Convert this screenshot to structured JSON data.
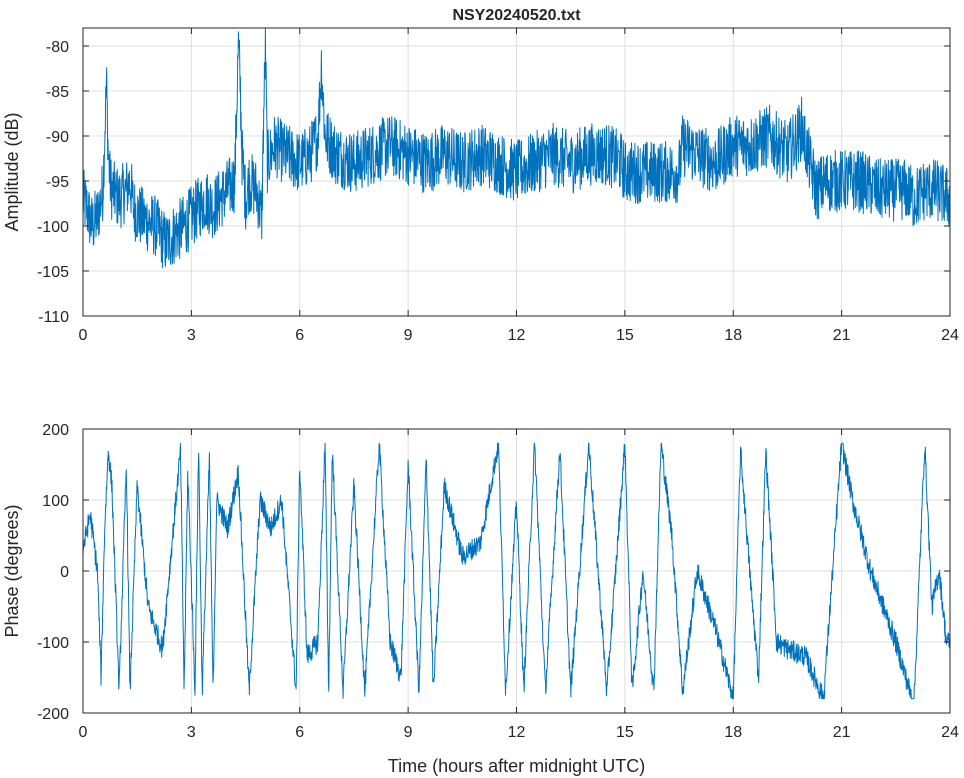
{
  "title": "NSY20240520.txt",
  "xlabel": "Time (hours after midnight UTC)",
  "colors": {
    "series": "#0072BD"
  },
  "chart_data": [
    {
      "type": "line",
      "name": "amplitude",
      "title": "NSY20240520.txt",
      "xlabel": "",
      "ylabel": "Amplitude (dB)",
      "xlim": [
        0,
        24
      ],
      "ylim": [
        -110,
        -78
      ],
      "xticks": [
        0,
        3,
        6,
        9,
        12,
        15,
        18,
        21,
        24
      ],
      "yticks": [
        -110,
        -105,
        -100,
        -95,
        -90,
        -85,
        -80
      ],
      "grid": true,
      "series": [
        {
          "x": [
            0,
            0.1,
            0.25,
            0.4,
            0.5,
            0.55,
            0.6,
            0.65,
            0.7,
            0.75,
            0.8,
            1.0,
            1.2,
            1.3,
            1.4,
            1.6,
            2.0,
            2.3,
            2.5,
            2.8,
            3.0,
            3.2,
            3.4,
            3.6,
            3.8,
            4.0,
            4.2,
            4.3,
            4.35,
            4.4,
            4.5,
            4.6,
            4.8,
            4.95,
            5.0,
            5.05,
            5.1,
            5.3,
            5.6,
            6.0,
            6.3,
            6.5,
            6.6,
            6.7,
            7.0,
            7.5,
            8.0,
            8.5,
            9.0,
            9.5,
            10.0,
            10.5,
            11.0,
            11.5,
            12.0,
            12.5,
            13.0,
            13.5,
            14.0,
            14.5,
            14.9,
            15.0,
            15.5,
            16.0,
            16.5,
            16.6,
            17.0,
            17.5,
            18.0,
            18.5,
            19.0,
            19.5,
            19.8,
            19.9,
            20.0,
            20.3,
            20.6,
            21.0,
            21.5,
            22.0,
            22.5,
            22.8,
            23.0,
            23.3,
            23.6,
            24.0
          ],
          "y": [
            -97,
            -98,
            -100,
            -99,
            -97,
            -96,
            -90,
            -84,
            -92,
            -95,
            -96,
            -97,
            -96,
            -95,
            -98,
            -99,
            -100,
            -102,
            -101,
            -100,
            -99,
            -98,
            -97,
            -98,
            -97,
            -96,
            -95,
            -80,
            -84,
            -92,
            -97,
            -95,
            -96,
            -99,
            -88,
            -80,
            -93,
            -91,
            -92,
            -93,
            -92,
            -90,
            -82,
            -90,
            -92,
            -93,
            -92,
            -91,
            -92,
            -93,
            -92,
            -93,
            -92,
            -93,
            -94,
            -93,
            -92,
            -93,
            -92,
            -92,
            -93,
            -94,
            -94,
            -94,
            -94,
            -91,
            -92,
            -93,
            -91,
            -91,
            -90,
            -92,
            -90,
            -89,
            -91,
            -96,
            -95,
            -95,
            -95,
            -96,
            -96,
            -96,
            -97,
            -96,
            -96,
            -97
          ]
        }
      ]
    },
    {
      "type": "line",
      "name": "phase",
      "title": "",
      "xlabel": "Time (hours after midnight UTC)",
      "ylabel": "Phase (degrees)",
      "xlim": [
        0,
        24
      ],
      "ylim": [
        -200,
        200
      ],
      "xticks": [
        0,
        3,
        6,
        9,
        12,
        15,
        18,
        21,
        24
      ],
      "yticks": [
        -200,
        -100,
        0,
        100,
        200
      ],
      "grid": true,
      "series": [
        {
          "x": [
            0,
            0.2,
            0.4,
            0.5,
            0.6,
            0.7,
            0.8,
            1.0,
            1.2,
            1.3,
            1.5,
            1.8,
            2.0,
            2.2,
            2.5,
            2.7,
            2.8,
            2.9,
            3.1,
            3.2,
            3.3,
            3.5,
            3.6,
            3.7,
            4.0,
            4.3,
            4.6,
            4.9,
            5.2,
            5.5,
            5.9,
            6.0,
            6.2,
            6.5,
            6.7,
            6.8,
            6.9,
            7.2,
            7.5,
            7.8,
            8.2,
            8.5,
            8.8,
            9.0,
            9.3,
            9.5,
            9.7,
            10.0,
            10.5,
            11.0,
            11.5,
            11.7,
            12.0,
            12.2,
            12.5,
            12.8,
            13.2,
            13.5,
            14.0,
            14.5,
            15.0,
            15.2,
            15.5,
            15.8,
            16.0,
            16.3,
            16.6,
            17.0,
            17.5,
            18.0,
            18.2,
            18.5,
            18.7,
            18.9,
            19.2,
            19.5,
            20.0,
            20.5,
            21.0,
            21.3,
            21.8,
            22.5,
            23.0,
            23.3,
            23.5,
            23.7,
            23.9,
            24.0
          ],
          "y": [
            30,
            80,
            0,
            -150,
            60,
            170,
            120,
            -170,
            150,
            -170,
            120,
            -50,
            -80,
            -110,
            60,
            170,
            -170,
            140,
            -170,
            180,
            -170,
            160,
            -170,
            100,
            60,
            140,
            -170,
            100,
            60,
            100,
            -170,
            150,
            -120,
            -100,
            180,
            -170,
            170,
            -170,
            120,
            -170,
            180,
            -100,
            -150,
            150,
            -170,
            160,
            -170,
            120,
            20,
            40,
            180,
            -170,
            100,
            -170,
            180,
            -170,
            170,
            -170,
            180,
            -170,
            180,
            -170,
            0,
            -170,
            180,
            50,
            -170,
            0,
            -80,
            -180,
            170,
            -30,
            -150,
            170,
            -100,
            -110,
            -120,
            -180,
            180,
            100,
            0,
            -100,
            -190,
            180,
            -50,
            0,
            -100,
            -100
          ]
        }
      ]
    }
  ]
}
